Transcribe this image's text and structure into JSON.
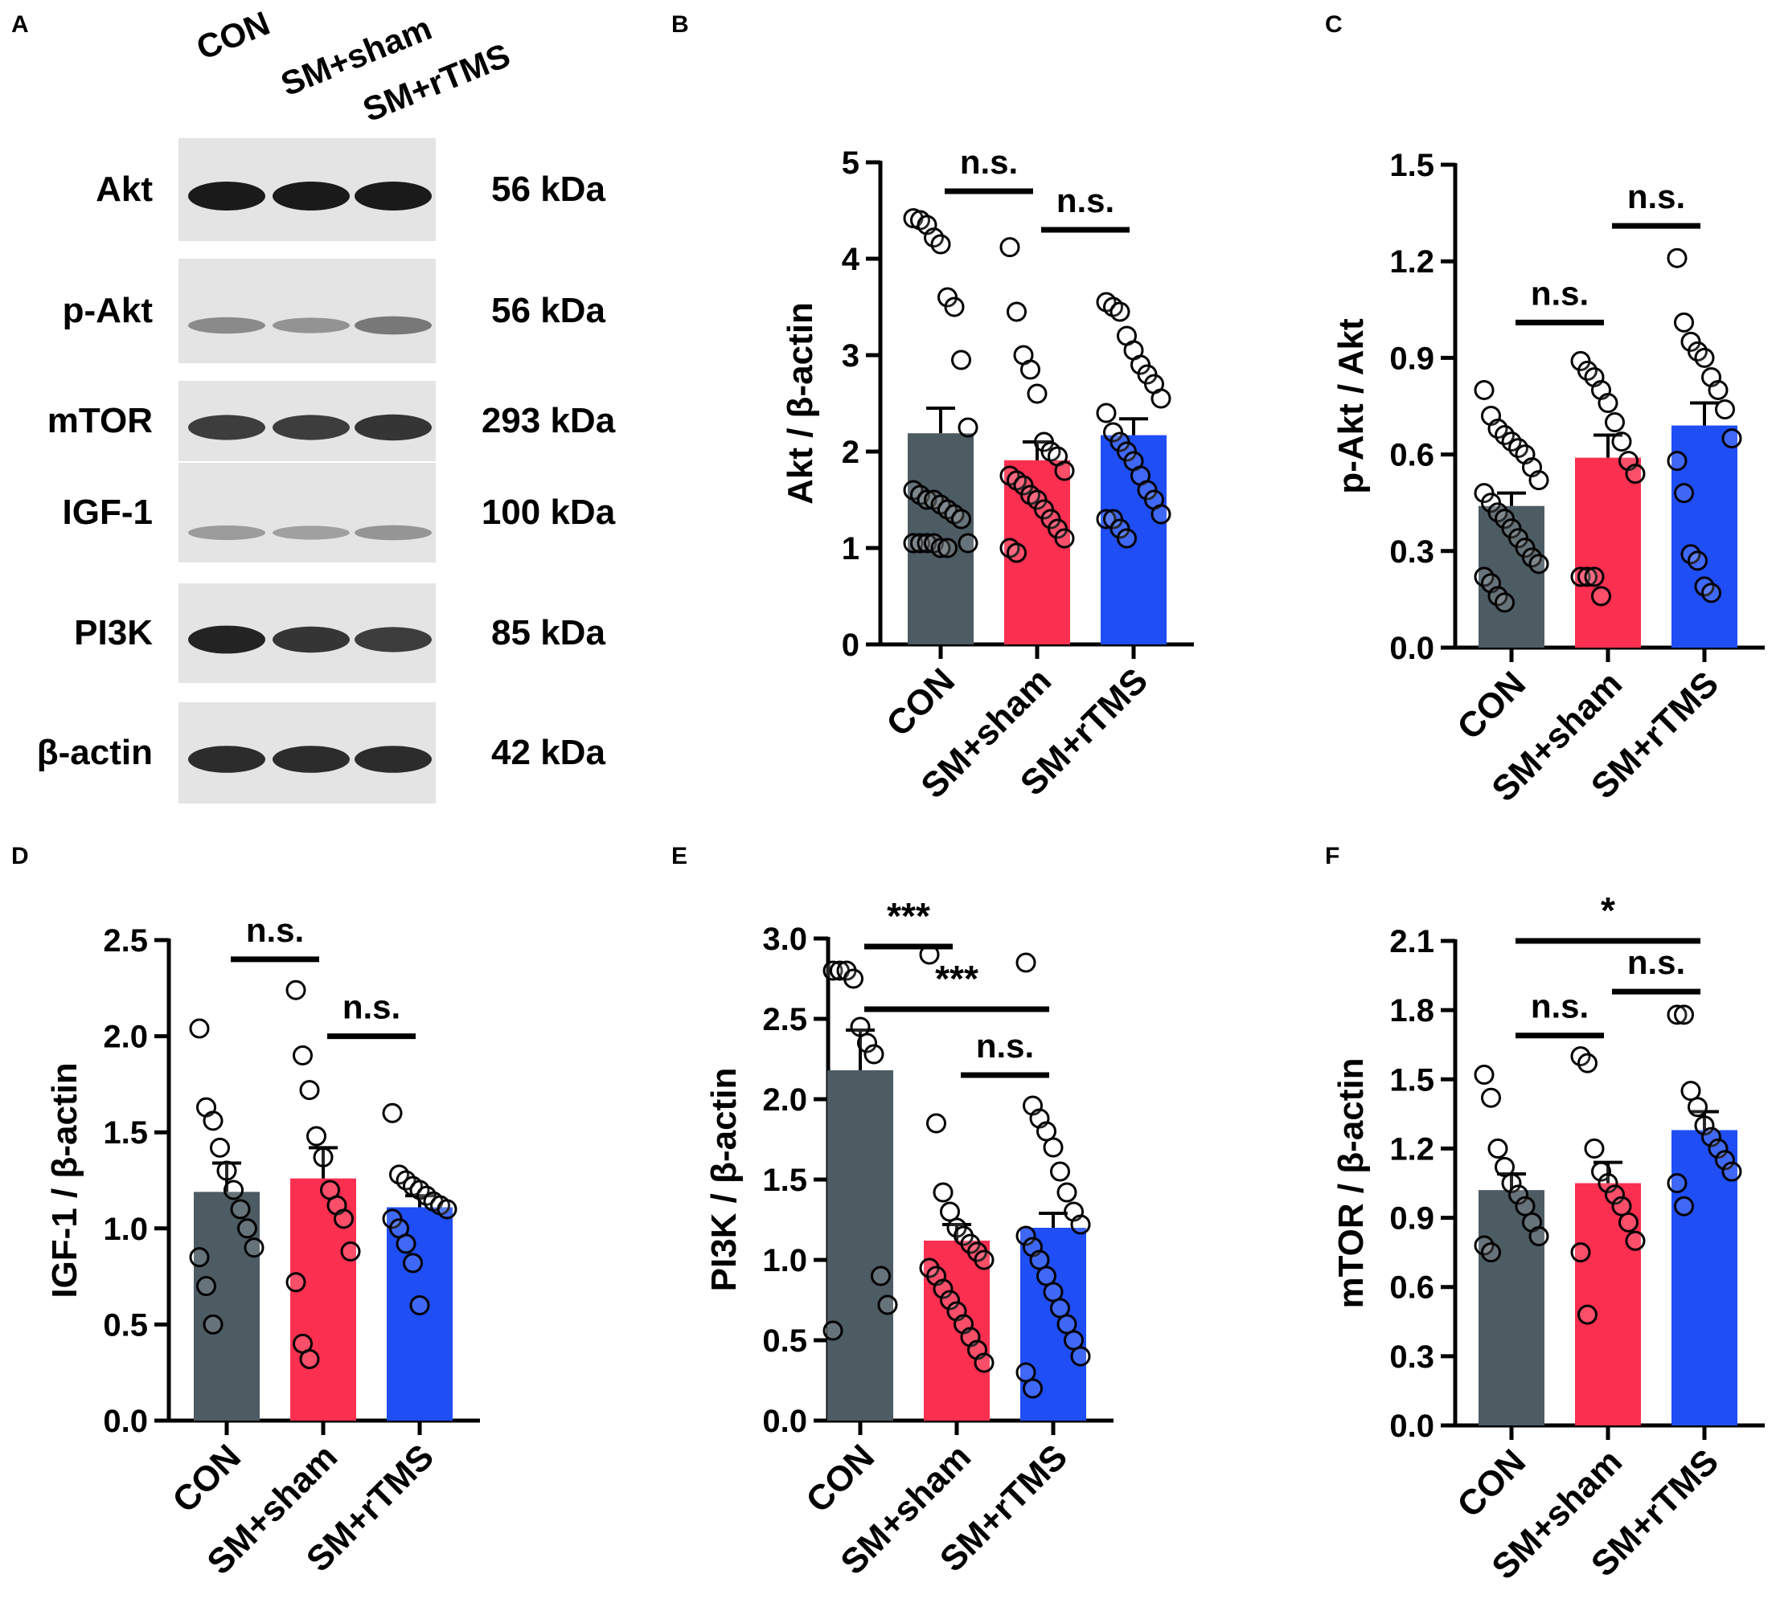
{
  "panels": {
    "A": "A",
    "B": "B",
    "C": "C",
    "D": "D",
    "E": "E",
    "F": "F"
  },
  "colors": {
    "CON": "#4d5b63",
    "SM+sham": "#fb2f4f",
    "SM+rTMS": "#1f4ef5",
    "blot_background": "#e4e4e4",
    "band": "#1a1a1a"
  },
  "western_blot": {
    "lanes": [
      "CON",
      "SM+sham",
      "SM+rTMS"
    ],
    "rows": [
      {
        "protein": "Akt",
        "size": "56 kDa",
        "band_intensity": [
          1.0,
          1.0,
          1.0
        ]
      },
      {
        "protein": "p-Akt",
        "size": "56 kDa",
        "band_intensity": [
          0.35,
          0.3,
          0.45
        ]
      },
      {
        "protein": "mTOR",
        "size": "293 kDa",
        "band_intensity": [
          0.8,
          0.8,
          0.85
        ]
      },
      {
        "protein": "IGF-1",
        "size": "100 kDa",
        "band_intensity": [
          0.25,
          0.22,
          0.28
        ]
      },
      {
        "protein": "PI3K",
        "size": "85 kDa",
        "band_intensity": [
          0.95,
          0.85,
          0.8
        ]
      },
      {
        "protein": "β-actin",
        "size": "42 kDa",
        "band_intensity": [
          0.9,
          0.9,
          0.9
        ]
      }
    ]
  },
  "chart_data": [
    {
      "id": "B",
      "type": "bar",
      "ylabel": "Akt / β-actin",
      "categories": [
        "CON",
        "SM+sham",
        "SM+rTMS"
      ],
      "ylim": [
        0,
        5
      ],
      "ticks": [
        0,
        1,
        2,
        3,
        4,
        5
      ],
      "tick_labels": [
        "0",
        "1",
        "2",
        "3",
        "4",
        "5"
      ],
      "values": [
        2.19,
        1.91,
        2.17
      ],
      "sem": [
        0.26,
        0.19,
        0.17
      ],
      "points": [
        [
          4.42,
          4.4,
          4.35,
          4.22,
          4.15,
          3.6,
          3.5,
          2.95,
          2.25,
          1.6,
          1.55,
          1.5,
          1.5,
          1.45,
          1.4,
          1.35,
          1.3,
          1.05,
          1.05,
          1.05,
          1.05,
          1.05,
          1.0,
          1.0
        ],
        [
          4.12,
          3.45,
          3.0,
          2.85,
          2.6,
          2.1,
          2.0,
          1.95,
          1.8,
          1.75,
          1.7,
          1.65,
          1.55,
          1.5,
          1.4,
          1.3,
          1.2,
          1.1,
          1.0,
          0.95
        ],
        [
          3.55,
          3.5,
          3.45,
          3.2,
          3.05,
          2.9,
          2.8,
          2.7,
          2.55,
          2.4,
          2.2,
          2.1,
          2.0,
          1.9,
          1.75,
          1.6,
          1.5,
          1.35,
          1.3,
          1.3,
          1.2,
          1.1
        ]
      ],
      "sig": [
        {
          "from": 0,
          "to": 1,
          "label": "n.s.",
          "y": 4.7
        },
        {
          "from": 1,
          "to": 2,
          "label": "n.s.",
          "y": 4.3
        }
      ]
    },
    {
      "id": "C",
      "type": "bar",
      "ylabel": "p-Akt / Akt",
      "categories": [
        "CON",
        "SM+sham",
        "SM+rTMS"
      ],
      "ylim": [
        0,
        1.5
      ],
      "ticks": [
        0,
        0.3,
        0.6,
        0.9,
        1.2,
        1.5
      ],
      "tick_labels": [
        "0.0",
        "0.3",
        "0.6",
        "0.9",
        "1.2",
        "1.5"
      ],
      "values": [
        0.44,
        0.59,
        0.69
      ],
      "sem": [
        0.04,
        0.07,
        0.07
      ],
      "points": [
        [
          0.8,
          0.72,
          0.68,
          0.66,
          0.64,
          0.62,
          0.6,
          0.56,
          0.52,
          0.48,
          0.45,
          0.42,
          0.4,
          0.37,
          0.34,
          0.31,
          0.28,
          0.26,
          0.22,
          0.2,
          0.16,
          0.14
        ],
        [
          0.89,
          0.86,
          0.84,
          0.8,
          0.76,
          0.7,
          0.64,
          0.58,
          0.54,
          0.22,
          0.22,
          0.22,
          0.16
        ],
        [
          1.21,
          1.01,
          0.95,
          0.92,
          0.9,
          0.84,
          0.8,
          0.74,
          0.65,
          0.58,
          0.48,
          0.29,
          0.27,
          0.19,
          0.17
        ]
      ],
      "sig": [
        {
          "from": 0,
          "to": 1,
          "label": "n.s.",
          "y": 1.01
        },
        {
          "from": 1,
          "to": 2,
          "label": "n.s.",
          "y": 1.31
        }
      ]
    },
    {
      "id": "D",
      "type": "bar",
      "ylabel": "IGF-1 / β-actin",
      "categories": [
        "CON",
        "SM+sham",
        "SM+rTMS"
      ],
      "ylim": [
        0,
        2.5
      ],
      "ticks": [
        0,
        0.5,
        1,
        1.5,
        2,
        2.5
      ],
      "tick_labels": [
        "0.0",
        "0.5",
        "1.0",
        "1.5",
        "2.0",
        "2.5"
      ],
      "values": [
        1.19,
        1.26,
        1.11
      ],
      "sem": [
        0.15,
        0.16,
        0.06
      ],
      "points": [
        [
          2.04,
          1.63,
          1.56,
          1.42,
          1.3,
          1.2,
          1.1,
          1.0,
          0.9,
          0.85,
          0.7,
          0.5
        ],
        [
          2.24,
          1.9,
          1.72,
          1.48,
          1.37,
          1.2,
          1.12,
          1.05,
          0.88,
          0.72,
          0.4,
          0.32
        ],
        [
          1.6,
          1.28,
          1.25,
          1.22,
          1.2,
          1.17,
          1.14,
          1.12,
          1.1,
          1.05,
          1.0,
          0.92,
          0.82,
          0.6
        ]
      ],
      "sig": [
        {
          "from": 0,
          "to": 1,
          "label": "n.s.",
          "y": 2.4
        },
        {
          "from": 1,
          "to": 2,
          "label": "n.s.",
          "y": 2.0
        }
      ]
    },
    {
      "id": "E",
      "type": "bar",
      "ylabel": "PI3K / β-actin",
      "categories": [
        "CON",
        "SM+sham",
        "SM+rTMS"
      ],
      "ylim": [
        0,
        3.0
      ],
      "ticks": [
        0,
        0.5,
        1,
        1.5,
        2,
        2.5,
        3
      ],
      "tick_labels": [
        "0.0",
        "0.5",
        "1.0",
        "1.5",
        "2.0",
        "2.5",
        "3.0"
      ],
      "values": [
        2.18,
        1.12,
        1.2
      ],
      "sem": [
        0.25,
        0.1,
        0.09
      ],
      "points": [
        [
          2.8,
          2.8,
          2.8,
          2.75,
          2.45,
          2.35,
          2.28,
          0.9,
          0.72,
          0.56
        ],
        [
          2.9,
          1.85,
          1.42,
          1.3,
          1.2,
          1.15,
          1.1,
          1.05,
          1.0,
          0.95,
          0.9,
          0.82,
          0.75,
          0.68,
          0.6,
          0.52,
          0.44,
          0.36
        ],
        [
          2.85,
          1.96,
          1.88,
          1.8,
          1.7,
          1.55,
          1.42,
          1.3,
          1.22,
          1.15,
          1.08,
          1.0,
          0.9,
          0.8,
          0.7,
          0.6,
          0.5,
          0.4,
          0.3,
          0.2
        ]
      ],
      "sig": [
        {
          "from": 0,
          "to": 1,
          "label": "***",
          "y": 2.95
        },
        {
          "from": 0,
          "to": 2,
          "label": "***",
          "y": 2.56
        },
        {
          "from": 1,
          "to": 2,
          "label": "n.s.",
          "y": 2.15
        }
      ]
    },
    {
      "id": "F",
      "type": "bar",
      "ylabel": "mTOR / β-actin",
      "categories": [
        "CON",
        "SM+sham",
        "SM+rTMS"
      ],
      "ylim": [
        0,
        2.1
      ],
      "ticks": [
        0,
        0.3,
        0.6,
        0.9,
        1.2,
        1.5,
        1.8,
        2.1
      ],
      "tick_labels": [
        "0.0",
        "0.3",
        "0.6",
        "0.9",
        "1.2",
        "1.5",
        "1.8",
        "2.1"
      ],
      "values": [
        1.02,
        1.05,
        1.28
      ],
      "sem": [
        0.07,
        0.09,
        0.08
      ],
      "points": [
        [
          1.52,
          1.42,
          1.2,
          1.12,
          1.05,
          1.0,
          0.95,
          0.88,
          0.82,
          0.78,
          0.75
        ],
        [
          1.6,
          1.57,
          1.2,
          1.1,
          1.05,
          1.0,
          0.95,
          0.88,
          0.8,
          0.75,
          0.48
        ],
        [
          1.78,
          1.78,
          1.45,
          1.38,
          1.3,
          1.25,
          1.2,
          1.15,
          1.1,
          1.05,
          0.95
        ]
      ],
      "sig": [
        {
          "from": 0,
          "to": 2,
          "label": "*",
          "y": 2.1
        },
        {
          "from": 1,
          "to": 2,
          "label": "n.s.",
          "y": 1.88
        },
        {
          "from": 0,
          "to": 1,
          "label": "n.s.",
          "y": 1.69
        }
      ]
    }
  ]
}
